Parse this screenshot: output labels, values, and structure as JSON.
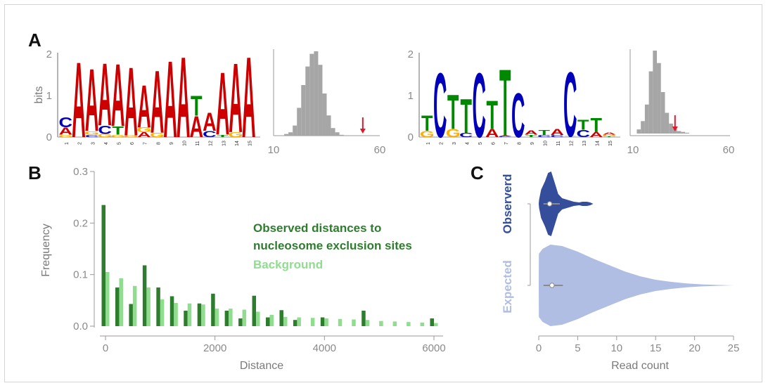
{
  "panels": {
    "a": "A",
    "b": "B",
    "c": "C"
  },
  "colors": {
    "A": "#cc0000",
    "C": "#0000bb",
    "G": "#ffb000",
    "T": "#008800",
    "hist": "#a6a6a6",
    "arrow": "#e0182d",
    "observed_dist": "#2e7d2e",
    "background": "#90dd90",
    "observed_violin": "#344e9c",
    "expected_violin": "#b1bee3",
    "axis": "#9a9a9a"
  },
  "chart_data": [
    {
      "type": "sequence-logo",
      "ylabel": "bits",
      "yticks": [
        "0",
        "1",
        "2"
      ],
      "positions": [
        "1",
        "2",
        "3",
        "4",
        "5",
        "6",
        "7",
        "8",
        "9",
        "10",
        "11",
        "12",
        "13",
        "14",
        "15"
      ],
      "stacks": [
        [
          [
            "G",
            0.06
          ],
          [
            "A",
            0.18
          ],
          [
            "C",
            0.25
          ]
        ],
        [
          [
            "A",
            1.87
          ]
        ],
        [
          [
            "C",
            0.06
          ],
          [
            "G",
            0.08
          ],
          [
            "A",
            1.55
          ]
        ],
        [
          [
            "G",
            0.08
          ],
          [
            "C",
            0.2
          ],
          [
            "A",
            1.55
          ]
        ],
        [
          [
            "G",
            0.06
          ],
          [
            "T",
            0.2
          ],
          [
            "A",
            1.55
          ]
        ],
        [
          [
            "G",
            0.04
          ],
          [
            "A",
            1.7
          ]
        ],
        [
          [
            "A",
            0.12
          ],
          [
            "G",
            0.12
          ],
          [
            "A",
            1.05
          ]
        ],
        [
          [
            "G",
            0.1
          ],
          [
            "A",
            1.55
          ]
        ],
        [
          [
            "A",
            1.9
          ]
        ],
        [
          [
            "A",
            2.0
          ]
        ],
        [
          [
            "A",
            0.52
          ],
          [
            "T",
            0.5
          ]
        ],
        [
          [
            "C",
            0.15
          ],
          [
            "A",
            0.45
          ]
        ],
        [
          [
            "T",
            0.06
          ],
          [
            "A",
            1.55
          ]
        ],
        [
          [
            "G",
            0.12
          ],
          [
            "A",
            1.72
          ]
        ],
        [
          [
            "A",
            2.0
          ]
        ]
      ]
    },
    {
      "type": "bar",
      "xticks": [
        "10",
        "60"
      ],
      "xlim": [
        10,
        60
      ],
      "bin_starts": [
        15,
        17,
        19,
        21,
        23,
        25,
        27,
        29,
        31,
        33,
        35,
        37,
        39,
        41
      ],
      "values": [
        0.02,
        0.04,
        0.12,
        0.33,
        0.6,
        0.82,
        0.97,
        1.0,
        0.84,
        0.5,
        0.24,
        0.09,
        0.04,
        0.01
      ],
      "marker": 52
    },
    {
      "type": "sequence-logo",
      "ylabel": "",
      "yticks": [
        "0",
        "1",
        "2"
      ],
      "positions": [
        "1",
        "2",
        "3",
        "4",
        "5",
        "6",
        "7",
        "8",
        "9",
        "10",
        "11",
        "12",
        "13",
        "14",
        "15"
      ],
      "stacks": [
        [
          [
            "G",
            0.15
          ],
          [
            "T",
            0.38
          ]
        ],
        [
          [
            "C",
            1.6
          ]
        ],
        [
          [
            "G",
            0.2
          ],
          [
            "T",
            0.85
          ]
        ],
        [
          [
            "C",
            0.1
          ],
          [
            "T",
            0.85
          ]
        ],
        [
          [
            "C",
            1.6
          ]
        ],
        [
          [
            "A",
            0.2
          ],
          [
            "T",
            0.7
          ]
        ],
        [
          [
            "C",
            0.02
          ],
          [
            "A",
            0.02
          ],
          [
            "T",
            1.65
          ]
        ],
        [
          [
            "C",
            1.1
          ]
        ],
        [
          [
            "T",
            0.06
          ],
          [
            "A",
            0.1
          ]
        ],
        [
          [
            "C",
            0.05
          ],
          [
            "T",
            0.12
          ]
        ],
        [
          [
            "C",
            0.05
          ],
          [
            "A",
            0.15
          ]
        ],
        [
          [
            "T",
            0.02
          ],
          [
            "C",
            1.6
          ]
        ],
        [
          [
            "C",
            0.18
          ],
          [
            "T",
            0.25
          ]
        ],
        [
          [
            "A",
            0.12
          ],
          [
            "T",
            0.35
          ]
        ],
        [
          [
            "T",
            0.02
          ],
          [
            "G",
            0.04
          ],
          [
            "A",
            0.06
          ]
        ]
      ]
    },
    {
      "type": "bar",
      "xticks": [
        "10",
        "60"
      ],
      "xlim": [
        10,
        60
      ],
      "bin_starts": [
        14,
        16,
        18,
        20,
        22,
        24,
        26,
        28,
        30,
        32,
        34,
        36,
        38
      ],
      "values": [
        0.05,
        0.15,
        0.35,
        0.75,
        1.0,
        0.85,
        0.5,
        0.25,
        0.12,
        0.06,
        0.03,
        0.02,
        0.01
      ],
      "marker": 33
    },
    {
      "type": "bar",
      "xlabel": "Distance",
      "ylabel": "Frequency",
      "ylim": [
        0,
        0.3
      ],
      "xlim": [
        -150,
        6100
      ],
      "yticks": [
        "0.0",
        "0.1",
        "0.2",
        "0.3"
      ],
      "xticks": [
        "0",
        "2000",
        "4000",
        "6000"
      ],
      "x": [
        0,
        250,
        500,
        750,
        1000,
        1250,
        1500,
        1750,
        2000,
        2250,
        2500,
        2750,
        3000,
        3250,
        3500,
        3750,
        4000,
        4250,
        4500,
        4750,
        5000,
        5250,
        5500,
        5750,
        6000
      ],
      "series": [
        {
          "name": "Observed distances to nucleosome exclusion sites",
          "values": [
            0.235,
            0.075,
            0.043,
            0.118,
            0.075,
            0.058,
            0.03,
            0.044,
            0.063,
            0.03,
            0.015,
            0.059,
            0.017,
            0.031,
            0.012,
            0.0,
            0.017,
            0.0,
            0.0,
            0.03,
            0.0,
            0.0,
            0.0,
            0.0,
            0.015
          ]
        },
        {
          "name": "Background",
          "values": [
            0.105,
            0.093,
            0.078,
            0.075,
            0.052,
            0.045,
            0.044,
            0.042,
            0.034,
            0.034,
            0.032,
            0.028,
            0.022,
            0.018,
            0.017,
            0.016,
            0.015,
            0.014,
            0.013,
            0.012,
            0.01,
            0.009,
            0.008,
            0.007,
            0.006
          ]
        }
      ],
      "legend": [
        "Observed distances to",
        "nucleosome exclusion sites",
        "Background"
      ]
    },
    {
      "type": "violin",
      "xlabel": "Read count",
      "xlim": [
        0,
        25
      ],
      "xticks": [
        "0",
        "5",
        "10",
        "15",
        "20",
        "25"
      ],
      "groups": [
        {
          "name": "Observerd",
          "median": 1.4,
          "q1": 1.0,
          "q3": 2.5,
          "max": 7
        },
        {
          "name": "Expected",
          "median": 1.7,
          "q1": 1.0,
          "q3": 2.9,
          "max": 25
        }
      ]
    }
  ]
}
